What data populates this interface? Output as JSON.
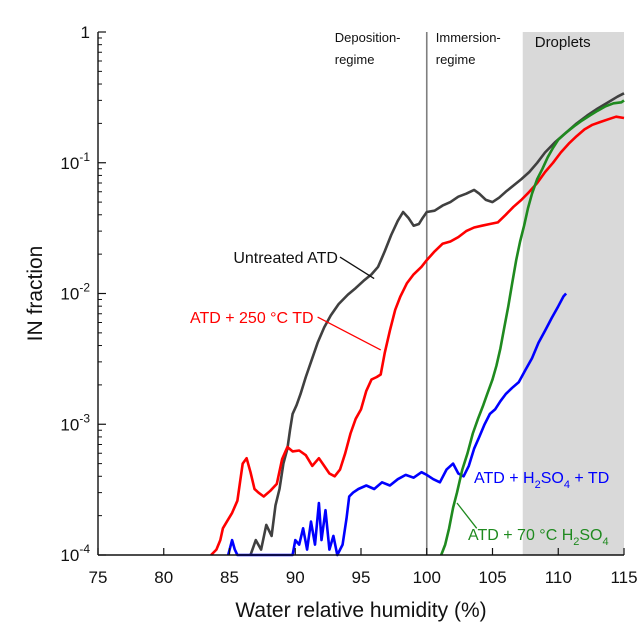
{
  "chart_data": {
    "type": "line",
    "xlabel": "Water relative humidity (%)",
    "ylabel": "IN fraction",
    "xlim": [
      75,
      115
    ],
    "ylim": [
      0.0001,
      1
    ],
    "yscale": "log",
    "x_ticks": [
      "75",
      "80",
      "85",
      "90",
      "95",
      "100",
      "105",
      "110",
      "115"
    ],
    "y_ticks": [
      {
        "value": 1,
        "base": "1",
        "exp": ""
      },
      {
        "value": 0.1,
        "base": "10",
        "exp": "-1"
      },
      {
        "value": 0.01,
        "base": "10",
        "exp": "-2"
      },
      {
        "value": 0.001,
        "base": "10",
        "exp": "-3"
      },
      {
        "value": 0.0001,
        "base": "10",
        "exp": "-4"
      }
    ],
    "regimes": {
      "deposition": [
        "Deposition-",
        "regime"
      ],
      "immersion": [
        "Immersion-",
        "regime"
      ],
      "droplets": "Droplets",
      "boundary_x": 100,
      "droplets_range": [
        107.3,
        115
      ]
    },
    "series": [
      {
        "name": "Untreated ATD",
        "color": "#404040",
        "points": [
          [
            86.6,
            0.0001
          ],
          [
            87.0,
            0.00013
          ],
          [
            87.4,
            0.00011
          ],
          [
            87.8,
            0.00017
          ],
          [
            88.2,
            0.00014
          ],
          [
            88.5,
            0.00024
          ],
          [
            88.8,
            0.00032
          ],
          [
            89.1,
            0.0005
          ],
          [
            89.4,
            0.00065
          ],
          [
            89.6,
            0.0009
          ],
          [
            89.8,
            0.0012
          ],
          [
            90.1,
            0.0014
          ],
          [
            90.4,
            0.0017
          ],
          [
            90.8,
            0.0023
          ],
          [
            91.2,
            0.003
          ],
          [
            91.7,
            0.0042
          ],
          [
            92.2,
            0.0055
          ],
          [
            92.7,
            0.0068
          ],
          [
            93.3,
            0.0083
          ],
          [
            94.0,
            0.0098
          ],
          [
            94.6,
            0.011
          ],
          [
            95.2,
            0.0125
          ],
          [
            95.8,
            0.014
          ],
          [
            96.3,
            0.016
          ],
          [
            96.8,
            0.021
          ],
          [
            97.3,
            0.028
          ],
          [
            97.8,
            0.036
          ],
          [
            98.2,
            0.042
          ],
          [
            98.6,
            0.038
          ],
          [
            99.0,
            0.033
          ],
          [
            99.4,
            0.034
          ],
          [
            99.7,
            0.038
          ],
          [
            100.0,
            0.042
          ],
          [
            100.6,
            0.043
          ],
          [
            101.2,
            0.047
          ],
          [
            101.8,
            0.05
          ],
          [
            102.4,
            0.055
          ],
          [
            103.0,
            0.058
          ],
          [
            103.6,
            0.062
          ],
          [
            104.0,
            0.058
          ],
          [
            104.5,
            0.052
          ],
          [
            105.0,
            0.05
          ],
          [
            105.5,
            0.054
          ],
          [
            106.0,
            0.06
          ],
          [
            106.6,
            0.067
          ],
          [
            107.2,
            0.075
          ],
          [
            107.8,
            0.085
          ],
          [
            108.4,
            0.1
          ],
          [
            109.0,
            0.12
          ],
          [
            109.8,
            0.145
          ],
          [
            110.6,
            0.17
          ],
          [
            111.4,
            0.2
          ],
          [
            112.2,
            0.23
          ],
          [
            113.0,
            0.26
          ],
          [
            113.8,
            0.29
          ],
          [
            114.5,
            0.32
          ],
          [
            115.0,
            0.34
          ]
        ]
      },
      {
        "name": "ATD + 250 °C TD",
        "color": "#ff0000",
        "points": [
          [
            83.6,
            0.0001
          ],
          [
            84.0,
            0.00011
          ],
          [
            84.3,
            0.00013
          ],
          [
            84.5,
            0.00016
          ],
          [
            84.8,
            0.00018
          ],
          [
            85.2,
            0.00021
          ],
          [
            85.6,
            0.00026
          ],
          [
            85.8,
            0.00036
          ],
          [
            86.0,
            0.0005
          ],
          [
            86.3,
            0.00055
          ],
          [
            86.6,
            0.00043
          ],
          [
            86.9,
            0.00032
          ],
          [
            87.2,
            0.0003
          ],
          [
            87.6,
            0.00028
          ],
          [
            88.1,
            0.00031
          ],
          [
            88.6,
            0.00035
          ],
          [
            89.0,
            0.00054
          ],
          [
            89.4,
            0.00067
          ],
          [
            89.8,
            0.00062
          ],
          [
            90.3,
            0.00063
          ],
          [
            90.8,
            0.00058
          ],
          [
            91.3,
            0.00048
          ],
          [
            91.8,
            0.00055
          ],
          [
            92.2,
            0.00048
          ],
          [
            92.6,
            0.00042
          ],
          [
            93.0,
            0.0004
          ],
          [
            93.4,
            0.00045
          ],
          [
            93.8,
            0.0006
          ],
          [
            94.2,
            0.00085
          ],
          [
            94.6,
            0.0011
          ],
          [
            95.0,
            0.0013
          ],
          [
            95.4,
            0.0018
          ],
          [
            95.8,
            0.0022
          ],
          [
            96.2,
            0.0023
          ],
          [
            96.5,
            0.0024
          ],
          [
            96.8,
            0.0035
          ],
          [
            97.2,
            0.0052
          ],
          [
            97.6,
            0.0075
          ],
          [
            98.0,
            0.0095
          ],
          [
            98.5,
            0.012
          ],
          [
            99.0,
            0.014
          ],
          [
            99.6,
            0.016
          ],
          [
            100.0,
            0.018
          ],
          [
            100.6,
            0.021
          ],
          [
            101.2,
            0.024
          ],
          [
            101.8,
            0.025
          ],
          [
            102.4,
            0.027
          ],
          [
            103.0,
            0.03
          ],
          [
            103.6,
            0.032
          ],
          [
            104.2,
            0.033
          ],
          [
            104.8,
            0.034
          ],
          [
            105.4,
            0.035
          ],
          [
            106.0,
            0.04
          ],
          [
            106.6,
            0.046
          ],
          [
            107.2,
            0.052
          ],
          [
            107.8,
            0.06
          ],
          [
            108.4,
            0.07
          ],
          [
            109.0,
            0.085
          ],
          [
            109.6,
            0.1
          ],
          [
            110.2,
            0.12
          ],
          [
            110.8,
            0.14
          ],
          [
            111.4,
            0.16
          ],
          [
            112.0,
            0.18
          ],
          [
            112.6,
            0.195
          ],
          [
            113.2,
            0.205
          ],
          [
            113.8,
            0.215
          ],
          [
            114.4,
            0.225
          ],
          [
            115.0,
            0.22
          ]
        ]
      },
      {
        "name": "ATD + H2SO4 + TD",
        "label_text": {
          "a": "ATD + H",
          "sub": "2",
          "b": "SO",
          "sub2": "4",
          "c": " + TD"
        },
        "color": "#0000ff",
        "points": [
          [
            84.9,
            0.0001
          ],
          [
            85.2,
            0.00013
          ],
          [
            85.4,
            0.00011
          ],
          [
            85.6,
            0.0001
          ],
          [
            89.8,
            0.0001
          ],
          [
            90.0,
            0.00013
          ],
          [
            90.3,
            0.00012
          ],
          [
            90.6,
            0.00016
          ],
          [
            90.9,
            0.00011
          ],
          [
            91.2,
            0.00018
          ],
          [
            91.5,
            0.00012
          ],
          [
            91.8,
            0.00025
          ],
          [
            92.0,
            0.00013
          ],
          [
            92.3,
            0.00022
          ],
          [
            92.6,
            0.00011
          ],
          [
            92.9,
            0.00014
          ],
          [
            93.2,
            0.0001
          ],
          [
            93.6,
            0.00012
          ],
          [
            93.9,
            0.00019
          ],
          [
            94.1,
            0.00028
          ],
          [
            94.4,
            0.0003
          ],
          [
            94.8,
            0.00032
          ],
          [
            95.4,
            0.00034
          ],
          [
            96.0,
            0.00032
          ],
          [
            96.6,
            0.00036
          ],
          [
            97.2,
            0.00034
          ],
          [
            97.8,
            0.00038
          ],
          [
            98.4,
            0.00041
          ],
          [
            99.0,
            0.00039
          ],
          [
            99.6,
            0.00043
          ],
          [
            100.0,
            0.00041
          ],
          [
            100.5,
            0.00038
          ],
          [
            101.0,
            0.00036
          ],
          [
            101.5,
            0.00045
          ],
          [
            102.0,
            0.0005
          ],
          [
            102.4,
            0.00042
          ],
          [
            102.8,
            0.0004
          ],
          [
            103.2,
            0.00048
          ],
          [
            103.6,
            0.00065
          ],
          [
            104.0,
            0.0008
          ],
          [
            104.4,
            0.001
          ],
          [
            104.8,
            0.0012
          ],
          [
            105.2,
            0.0013
          ],
          [
            105.6,
            0.0015
          ],
          [
            106.0,
            0.0017
          ],
          [
            106.5,
            0.0019
          ],
          [
            107.0,
            0.0021
          ],
          [
            107.5,
            0.0026
          ],
          [
            108.0,
            0.0032
          ],
          [
            108.5,
            0.0042
          ],
          [
            109.0,
            0.0052
          ],
          [
            109.5,
            0.0065
          ],
          [
            110.0,
            0.008
          ],
          [
            110.4,
            0.0095
          ],
          [
            110.6,
            0.01
          ]
        ]
      },
      {
        "name": "ATD + 70 °C H2SO4",
        "label_text": {
          "a": "ATD + 70 °C H",
          "sub": "2",
          "b": "SO",
          "sub2": "4"
        },
        "color": "#1f8a1f",
        "points": [
          [
            101.1,
            0.0001
          ],
          [
            101.4,
            0.00012
          ],
          [
            101.7,
            0.00016
          ],
          [
            102.0,
            0.00023
          ],
          [
            102.3,
            0.0003
          ],
          [
            102.7,
            0.00045
          ],
          [
            103.1,
            0.0006
          ],
          [
            103.5,
            0.00085
          ],
          [
            103.9,
            0.0011
          ],
          [
            104.3,
            0.0014
          ],
          [
            104.6,
            0.0017
          ],
          [
            105.0,
            0.0022
          ],
          [
            105.3,
            0.0028
          ],
          [
            105.6,
            0.0038
          ],
          [
            105.9,
            0.0055
          ],
          [
            106.2,
            0.008
          ],
          [
            106.5,
            0.012
          ],
          [
            106.8,
            0.018
          ],
          [
            107.1,
            0.025
          ],
          [
            107.4,
            0.033
          ],
          [
            107.7,
            0.045
          ],
          [
            108.0,
            0.058
          ],
          [
            108.4,
            0.075
          ],
          [
            108.8,
            0.09
          ],
          [
            109.2,
            0.11
          ],
          [
            109.6,
            0.13
          ],
          [
            110.0,
            0.15
          ],
          [
            110.6,
            0.17
          ],
          [
            111.2,
            0.19
          ],
          [
            111.8,
            0.21
          ],
          [
            112.4,
            0.23
          ],
          [
            113.0,
            0.25
          ],
          [
            113.6,
            0.27
          ],
          [
            114.2,
            0.285
          ],
          [
            114.8,
            0.29
          ],
          [
            115.0,
            0.3
          ]
        ]
      }
    ],
    "annotations": [
      {
        "text": "Untreated ATD",
        "series": 0,
        "color": "#111111",
        "from": [
          93.4,
          0.019
        ],
        "to": [
          96.0,
          0.013
        ]
      },
      {
        "text": "ATD + 250 °C TD",
        "series": 1,
        "color": "#ff0000",
        "from": [
          91.7,
          0.0066
        ],
        "to": [
          96.5,
          0.0037
        ]
      },
      {
        "text": "ATD + H2SO4 + TD",
        "series": 2,
        "color": "#0000ff"
      },
      {
        "text": "ATD + 70 °C H2SO4",
        "series": 3,
        "color": "#1f8a1f",
        "from": [
          103.8,
          0.00016
        ],
        "to": [
          102.3,
          0.00025
        ]
      }
    ]
  }
}
